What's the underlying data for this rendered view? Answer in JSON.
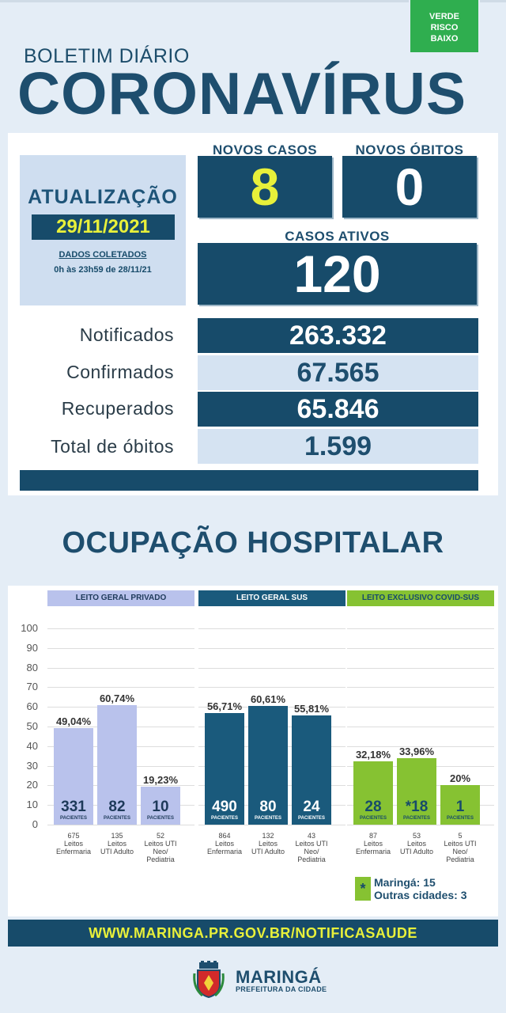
{
  "header": {
    "risk_badge": [
      "VERDE",
      "RISCO",
      "BAIXO"
    ],
    "subtitle": "BOLETIM DIÁRIO",
    "title": "CORONAVÍRUS"
  },
  "update": {
    "title": "ATUALIZAÇÃO",
    "date": "29/11/2021",
    "dados_label": "DADOS COLETADOS",
    "period": "0h às 23h59 de 28/11/21"
  },
  "headline": {
    "novos_casos_label": "NOVOS CASOS",
    "novos_casos_value": "8",
    "novos_obitos_label": "NOVOS ÓBITOS",
    "novos_obitos_value": "0",
    "casos_ativos_label": "CASOS ATIVOS",
    "casos_ativos_value": "120"
  },
  "stats": [
    {
      "label": "Notificados",
      "value": "263.332"
    },
    {
      "label": "Confirmados",
      "value": "67.565"
    },
    {
      "label": "Recuperados",
      "value": "65.846"
    },
    {
      "label": "Total de óbitos",
      "value": "1.599"
    }
  ],
  "hospital_title": "OCUPAÇÃO HOSPITALAR",
  "colors": {
    "dark_blue": "#174b6a",
    "light_blue": "#d5e3f2",
    "privado": "#b9c2ec",
    "sus": "#1a5a7c",
    "covid": "#86c232",
    "yellow": "#e8f03a"
  },
  "chart_data": {
    "type": "bar",
    "ylim": [
      0,
      100
    ],
    "yticks": [
      "0",
      "10",
      "20",
      "30",
      "40",
      "50",
      "60",
      "70",
      "80",
      "90",
      "100"
    ],
    "patients_label": "PACIENTES",
    "groups": [
      {
        "name": "LEITO GERAL PRIVADO",
        "bars": [
          {
            "value": 49.04,
            "pct_label": "49,04%",
            "patients": "331",
            "beds": "675",
            "caption": [
              "Leitos",
              "Enfermaria"
            ]
          },
          {
            "value": 60.74,
            "pct_label": "60,74%",
            "patients": "82",
            "beds": "135",
            "caption": [
              "Leitos",
              "UTI Adulto"
            ]
          },
          {
            "value": 19.23,
            "pct_label": "19,23%",
            "patients": "10",
            "beds": "52",
            "caption": [
              "Leitos UTI",
              "Neo/",
              "Pediatria"
            ]
          }
        ]
      },
      {
        "name": "LEITO GERAL SUS",
        "bars": [
          {
            "value": 56.71,
            "pct_label": "56,71%",
            "patients": "490",
            "beds": "864",
            "caption": [
              "Leitos",
              "Enfermaria"
            ]
          },
          {
            "value": 60.61,
            "pct_label": "60,61%",
            "patients": "80",
            "beds": "132",
            "caption": [
              "Leitos",
              "UTI Adulto"
            ]
          },
          {
            "value": 55.81,
            "pct_label": "55,81%",
            "patients": "24",
            "beds": "43",
            "caption": [
              "Leitos UTI",
              "Neo/",
              "Pediatria"
            ]
          }
        ]
      },
      {
        "name": "LEITO EXCLUSIVO COVID-SUS",
        "bars": [
          {
            "value": 32.18,
            "pct_label": "32,18%",
            "patients": "28",
            "beds": "87",
            "caption": [
              "Leitos",
              "Enfermaria"
            ]
          },
          {
            "value": 33.96,
            "pct_label": "33,96%",
            "patients": "*18",
            "beds": "53",
            "caption": [
              "Leitos",
              "UTI Adulto"
            ]
          },
          {
            "value": 20,
            "pct_label": "20%",
            "patients": "1",
            "beds": "5",
            "caption": [
              "Leitos UTI",
              "Neo/",
              "Pediatria"
            ]
          }
        ]
      }
    ]
  },
  "legend": {
    "symbol": "*",
    "line1": "Maringá: 15",
    "line2": "Outras cidades: 3"
  },
  "footer_url": "WWW.MARINGA.PR.GOV.BR/NOTIFICASAUDE",
  "brand": {
    "name": "MARINGÁ",
    "sub": "PREFEITURA DA CIDADE",
    "logo_icon": "city-coat-of-arms-icon"
  }
}
